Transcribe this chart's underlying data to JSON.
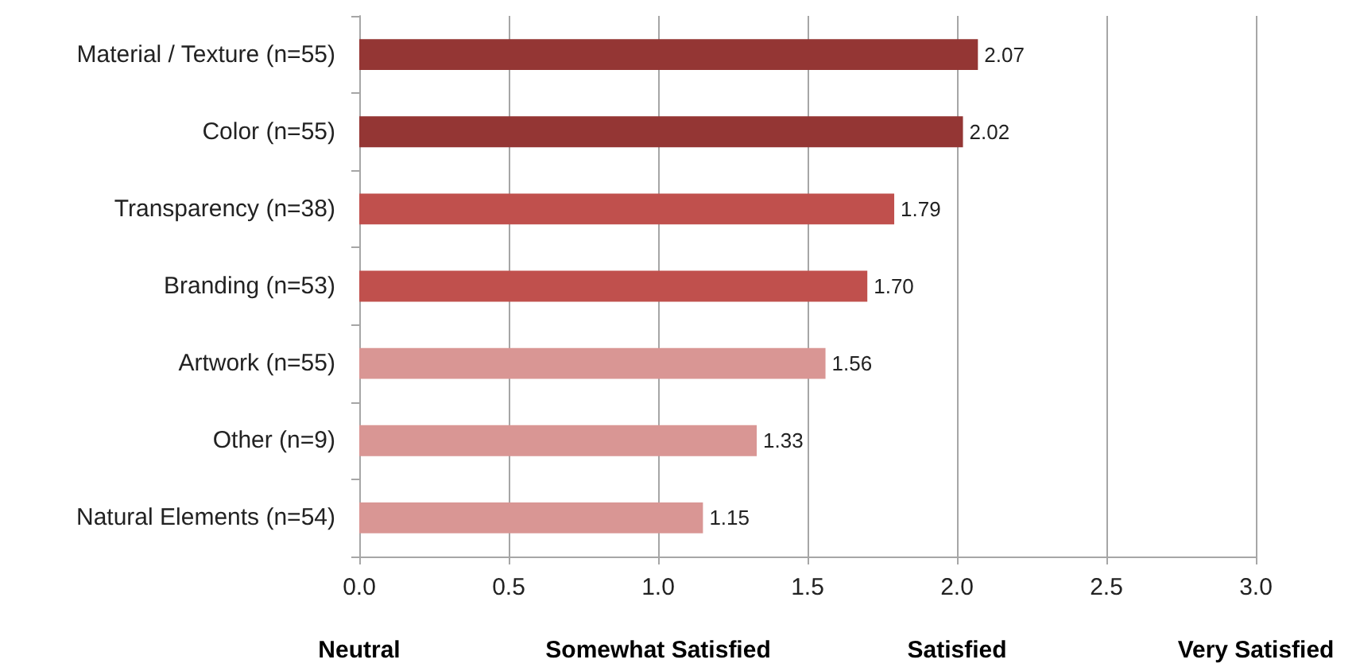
{
  "chart_data": {
    "type": "bar",
    "orientation": "horizontal",
    "categories": [
      "Material / Texture (n=55)",
      "Color (n=55)",
      "Transparency (n=38)",
      "Branding (n=53)",
      "Artwork (n=55)",
      "Other (n=9)",
      "Natural Elements (n=54)"
    ],
    "values": [
      2.07,
      2.02,
      1.79,
      1.7,
      1.56,
      1.33,
      1.15
    ],
    "colors": [
      "#943634",
      "#943634",
      "#c0504d",
      "#c0504d",
      "#d99694",
      "#d99694",
      "#d99694"
    ],
    "value_labels": [
      "2.07",
      "2.02",
      "1.79",
      "1.70",
      "1.56",
      "1.33",
      "1.15"
    ],
    "xlim": [
      0,
      3
    ],
    "xticks": [
      {
        "value": 0,
        "label": "0.0"
      },
      0.5,
      {
        "value": 1,
        "label": "1.0"
      },
      1.5,
      {
        "value": 2,
        "label": "2.0"
      },
      2.5,
      {
        "value": 3,
        "label": "3.0"
      }
    ],
    "annotations": [
      "Neutral",
      "Somewhat Satisfied",
      "Satisfied",
      "Very Satisfied"
    ],
    "grid": "x"
  }
}
